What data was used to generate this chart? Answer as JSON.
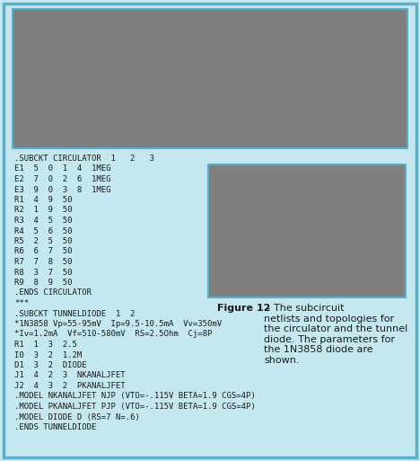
{
  "bg_color": "#c5e8f0",
  "outer_border_color": "#5aafcc",
  "box_fill_color": "#7f7f7f",
  "box_border_color": "#5aafcc",
  "text_color": "#1a1a1a",
  "mono_font_size": 6.5,
  "caption_font_size": 8.0,
  "figure_size": [
    4.68,
    5.13
  ],
  "dpi": 100,
  "netlist_lines": [
    ".SUBCKT CIRCULATOR  1   2   3",
    "E1  5  0  1  4  1MEG",
    "E2  7  0  2  6  1MEG",
    "E3  9  0  3  8  1MEG",
    "R1  4  9  50",
    "R2  1  9  50",
    "R3  4  5  50",
    "R4  5  6  50",
    "R5  2  5  50",
    "R6  6  7  50",
    "R7  7  8  50",
    "R8  3  7  50",
    "R9  8  9  50",
    ".ENDS CIRCULATOR",
    "***",
    ".SUBCKT TUNNELDIODE  1  2",
    "*1N3858 Vp=55-95mV  Ip=9.5-10.5mA  Vv=350mV",
    "*Iv=1.2mA  Vf=510-580mV  RS=2.5Ohm  Cj=8P",
    "R1  1  3  2.5",
    "I0  3  2  1.2M",
    "D1  3  2  DIODE",
    "J1  4  2  3  NKANALJFET",
    "J2  4  3  2  PKANALJFET",
    ".MODEL NKANALJFET NJP (VTO=-.115V BETA=1.9 CGS=4P)",
    ".MODEL PKANALJFET PJP (VTO=-.115V BETA=1.9 CGS=4P)",
    ".MODEL DIODE D (RS=7 N=.6)",
    ".ENDS TUNNELDIODE"
  ],
  "caption_bold": "Figure 12",
  "caption_rest": " - The subcircuit\nnetlists and topologies for\nthe circulator and the tunnel\ndiode. The parameters for\nthe 1N3858 diode are\nshown."
}
